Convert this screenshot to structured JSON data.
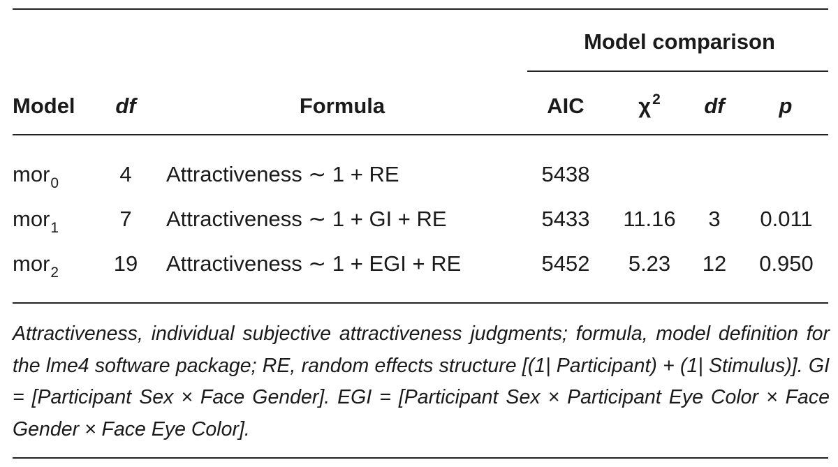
{
  "table": {
    "group_header": "Model comparison",
    "columns": {
      "model": "Model",
      "df": "df",
      "formula": "Formula",
      "aic": "AIC",
      "chi_base": "χ",
      "chi_sup": "2",
      "cmp_df": "df",
      "p": "p"
    },
    "rows": [
      {
        "model": "mor",
        "model_sub": "0",
        "df": "4",
        "formula": "Attractiveness ∼ 1 + RE",
        "aic": "5438",
        "chi2": "",
        "cmp_df": "",
        "p": ""
      },
      {
        "model": "mor",
        "model_sub": "1",
        "df": "7",
        "formula": "Attractiveness ∼ 1 + GI + RE",
        "aic": "5433",
        "chi2": "11.16",
        "cmp_df": "3",
        "p": "0.011"
      },
      {
        "model": "mor",
        "model_sub": "2",
        "df": "19",
        "formula": "Attractiveness ∼ 1 + EGI + RE",
        "aic": "5452",
        "chi2": "5.23",
        "cmp_df": "12",
        "p": "0.950"
      }
    ]
  },
  "footnote": "Attractiveness, individual subjective attractiveness judgments; formula, model definition for the lme4 software package; RE, random effects structure [(1| Participant) + (1| Stimulus)]. GI = [Participant Sex × Face Gender]. EGI = [Participant Sex × Participant Eye Color × Face Gender × Face Eye Color]."
}
